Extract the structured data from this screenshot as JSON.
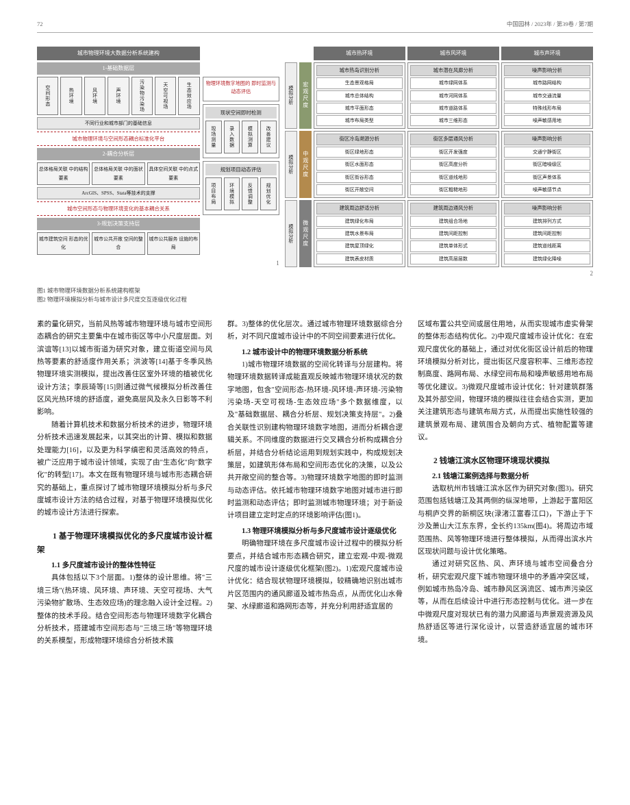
{
  "header": {
    "pagenum": "72",
    "journal": "中国园林 / 2023年 / 第39卷 / 第7期"
  },
  "d1": {
    "title": "城市物理环境大数据分析系统建构",
    "sec1": "1-基础数据层",
    "r1": [
      "空间形态",
      "热环境",
      "风环境",
      "声环境",
      "污染物污染场",
      "天空可视场",
      "生态效应场"
    ],
    "sec1note": "不同行业和城市部门的基础信息",
    "red1": "城市物理环境与空间形态耦合标准化平台",
    "sec2": "2-耦合分析层",
    "r2": [
      "总体格局关联 中的结构要素",
      "总体格局关联 中的面状要素",
      "具体空间关联 中的点式要素"
    ],
    "sec2note": "ArcGIS、SPSS、Stata等技术的支撑",
    "red2": "城市空间形态与物理环境变化的基本耦合关系",
    "sec3": "3-规划决策支持层",
    "r3": [
      "城市建筑空间 形态的优化",
      "城市公共开敞 空间的整合",
      "城市公共服务 设施的布局"
    ],
    "asideTitle": "物理环境数字地图的 即时监测与动态评估",
    "aside1Title": "现状空间即时检测",
    "aside1": [
      "现场测量",
      "录入数据",
      "模拟测算",
      "改善建议"
    ],
    "aside2Title": "规划项目动态评估",
    "aside2": [
      "项目布局",
      "环境模拟",
      "反馈调整",
      "规划优化"
    ]
  },
  "d2": {
    "headers": [
      "城市热环境",
      "城市风环境",
      "城市声环境"
    ],
    "scales": [
      "宏观尺度",
      "中观尺度",
      "微观尺度"
    ],
    "sideLabel": "模拟分析",
    "macro": [
      {
        "t": "城市热岛识别分析",
        "items": [
          "生态景观格局",
          "城市总体结构",
          "城市平面形态",
          "城市布局类型"
        ]
      },
      {
        "t": "城市潜在风廊分析",
        "items": [
          "城市绿网体系",
          "城市河网体系",
          "城市道路体系",
          "城市三维形态"
        ]
      },
      {
        "t": "噪声影响分析",
        "items": [
          "城市路网结构",
          "城市交通流量",
          "特殊线形布局",
          "噪声敏感用地"
        ]
      }
    ],
    "meso": [
      {
        "t": "街区冷岛溯源分析",
        "items": [
          "街区绿地形态",
          "街区水面形态",
          "街区街谷形态",
          "街区开敞空间"
        ]
      },
      {
        "t": "街区多层通风分析",
        "items": [
          "街区开发强度",
          "街区高度分析",
          "街区道线地形",
          "街区粗糙地形"
        ]
      },
      {
        "t": "噪声影响分析",
        "items": [
          "交通宁静街区",
          "街区暗噪级区",
          "街区声景体系",
          "噪声敏感节点"
        ]
      }
    ],
    "micro": [
      {
        "t": "建筑周边舒适分析",
        "items": [
          "建筑绿化布局",
          "建筑水景布局",
          "建筑屋顶绿化",
          "建筑表皮材质"
        ]
      },
      {
        "t": "建筑周边通风分析",
        "items": [
          "建筑组合场地",
          "建筑间距控制",
          "建筑单体形式",
          "建筑高层层数"
        ]
      },
      {
        "t": "噪声影响分析",
        "items": [
          "建筑排列方式",
          "建筑间距控制",
          "建筑道线距离",
          "建筑绿化降噪"
        ]
      }
    ]
  },
  "captions": {
    "c1": "图1  城市物理环境数据分析系统建构框架",
    "c2": "图2  物理环境模拟分析与城市设计多尺度交互逐级优化过程"
  },
  "body": {
    "col1": {
      "p1": "素的量化研究，当前风热等城市物理环境与城市空间形态耦合的研究主要集中在城市街区等中小尺度层面。刘滨谊等[13]以城市街道为研究对象，建立街道空间与风热等要素的舒适度作用关系；洪波等[14]基于冬季风热物理环境实测模拟，提出改善住区室外环境的植被优化设计方法；李辰琦等[15]则通过微气候模拟分析改善住区风光热环境的舒适度，避免高层风及永久日影等不利影响。",
      "p2": "随着计算机技术和数据分析技术的进步，物理环境分析技术迅速发展起来，以其突出的计算、模拟和数据处理能力[16]，以及更为科学缜密和灵活高效的特点，被广泛应用于城市设计领域，实现了由\"生态化\"向\"数字化\"的转型[17]。本文在既有物理环境与城市形态耦合研究的基础上，重点探讨了城市物理环境模拟分析与多尺度城市设计方法的结合过程，对基于物理环境模拟优化的城市设计方法进行探索。",
      "h1": "1  基于物理环境模拟优化的多尺度城市设计框架",
      "h2a": "1.1  多尺度城市设计的整体性特征",
      "p3": "具体包括以下3个层面。1)整体的设计思维。将\"三境三场\"(热环境、风环境、声环境、天空可视场、大气污染物扩散场、生态效应场)的理念融入设计全过程。2)整体的技术手段。结合空间形态与物理环境数字化耦合分析技术，搭建城市空间形态与\"三境三场\"等物理环境的关系模型，形成物理环境综合分析技术簇"
    },
    "col2": {
      "p1": "群。3)整体的优化层次。通过城市物理环境数据综合分析，对不同尺度城市设计中的不同空间要素进行优化。",
      "h2a": "1.2  城市设计中的物理环境数据分析系统",
      "p2": "1)城市物理环境数据的空间化转译与分层建构。将物理环境数据转译成能直观反映城市物理环境状况的数字地图，包含\"空间形态-热环境-风环境-声环境-污染物污染场-天空可视场-生态效应场\"多个数据维度，以及\"基础数据层、耦合分析层、规划决策支持层\"。2)叠合关联性识别建构物理环境数字地图，进而分析耦合逻辑关系。不同维度的数据进行交叉耦合分析构成耦合分析层，并结合分析结论运用到规划实践中，构成规划决策层，如建筑形体布局和空间形态优化的决策，以及公共开敞空间的整合等。3)物理环境数字地图的即时监测与动态评估。依托城市物理环境数字地图对城市进行即时监测和动态评估；即时监测城市物理环境；对于新设计项目建立定时定点的环境影响评估(图1)。",
      "h2b": "1.3  物理环境模拟分析与多尺度城市设计逐级优化",
      "p3": "明确物理环境在多尺度城市设计过程中的模拟分析要点，并结合城市形态耦合研究，建立宏观-中观-微观尺度的城市设计逐级优化框架(图2)。1)宏观尺度城市设计优化：结合现状物理环境模拟，较精确地识别出城市片区范围内的通风廊道及城市热岛点，从而优化山水骨架、水绿廊道和路网形态等，并充分利用舒适宜居的"
    },
    "col3": {
      "p1": "区域布置公共空间或居住用地，从而实现城市虚实骨架的整体形态结构优化。2)中观尺度城市设计优化：在宏观尺度优化的基础上，通过对优化街区设计前后的物理环境模拟分析对比，提出街区尺度容积率、三维形态控制高度、路网布局、水绿空间布局和噪声敏感用地布局等优化建议。3)微观尺度城市设计优化：针对建筑群落及其外部空间，物理环境的模拟往往会结合实测，更加关注建筑形态与建筑布局方式，从而提出实施性较强的建筑景观布局、建筑围合及朝向方式、植物配置等建议。",
      "h1": "2  钱塘江滨水区物理环境现状模拟",
      "h2a": "2.1  钱塘江案例选择与数据分析",
      "p2": "选取杭州市钱塘江滨水区作为研究对象(图3)。研究范围包括钱塘江及其两侧的纵深地带，上游起于富阳区与桐庐交界的新桐区块(渌渚江富春江口)，下游止于下沙及萧山大江东东界，全长约135km(图4)。将周边市域范围热、风等物理环境进行整体模拟，从而得出滨水片区现状问题与设计优化策略。",
      "p3": "通过对研究区热、风、声环境与城市空间叠合分析，研究宏观尺度下城市物理环境中的矛盾冲突区域，例如城市热岛冷岛、城市静风区涡流区、城市声污染区等，从而在后续设计中进行形态控制与优化。进一步在中微观尺度对现状已有的潜力风廊道与声景观资源及风热舒适区等进行深化设计，以营造舒适宜居的城市环境。"
    }
  }
}
